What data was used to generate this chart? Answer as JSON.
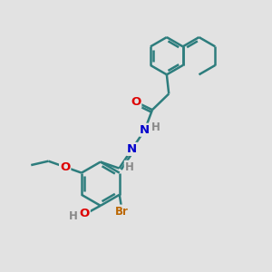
{
  "bg_color": "#e2e2e2",
  "bond_color": "#2d7d7d",
  "bond_width": 1.8,
  "atom_colors": {
    "O": "#dd0000",
    "N": "#0000cc",
    "Br": "#bb6600",
    "H": "#888888",
    "C": "#2d7d7d"
  },
  "font_size": 8.5
}
